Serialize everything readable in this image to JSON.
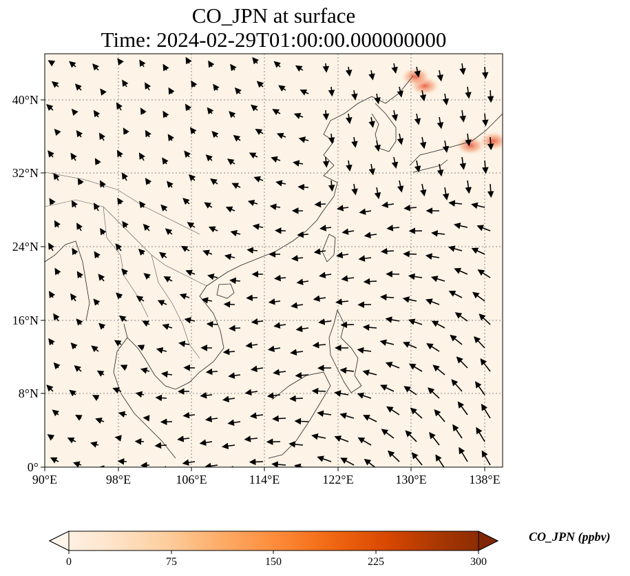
{
  "title_line1": "CO_JPN at surface",
  "title_line2": "Time: 2024-02-29T01:00:00.000000000",
  "lat_ticks": [
    "0°",
    "8°N",
    "16°N",
    "24°N",
    "32°N",
    "40°N"
  ],
  "lon_ticks": [
    "90°E",
    "98°E",
    "106°E",
    "114°E",
    "122°E",
    "130°E",
    "138°E"
  ],
  "extent": {
    "lon_min": 90,
    "lon_max": 140,
    "lat_min": 0,
    "lat_max": 45
  },
  "colorbar": {
    "label": "CO_JPN (ppbv)",
    "ticks": [
      "0",
      "75",
      "150",
      "225",
      "300"
    ],
    "vmin": 0,
    "vmax": 300,
    "colormap": [
      "#fff5eb",
      "#fee6ce",
      "#fdd0a2",
      "#fdae6b",
      "#fd8d3c",
      "#f16913",
      "#d94801",
      "#a63603",
      "#7f2704"
    ],
    "extend": "both"
  },
  "background_value_color": "#fdf3e6",
  "hotspots": [
    {
      "lon": 131.5,
      "lat": 41.5,
      "value": 160
    },
    {
      "lon": 130.5,
      "lat": 42.5,
      "value": 140
    },
    {
      "lon": 136.5,
      "lat": 35.0,
      "value": 120
    },
    {
      "lon": 139.0,
      "lat": 35.5,
      "value": 130
    }
  ],
  "gridlines": {
    "style": "dotted",
    "color": "#888888"
  }
}
